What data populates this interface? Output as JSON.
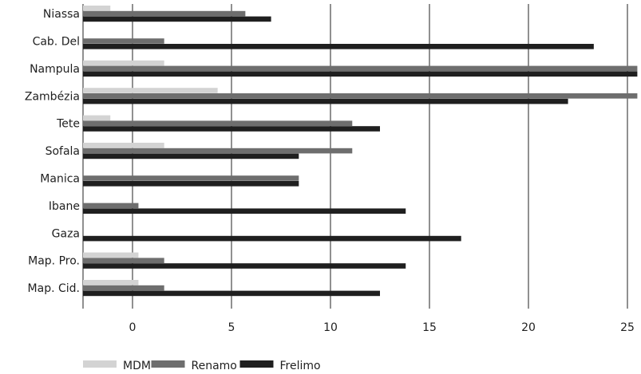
{
  "chart_data": {
    "type": "bar",
    "orientation": "horizontal",
    "title": "",
    "xlabel": "",
    "ylabel": "",
    "categories": [
      "Niassa",
      "Cab. Del",
      "Nampula",
      "Zambézia",
      "Tete",
      "Sofala",
      "Manica",
      "Ibane",
      "Gaza",
      "Map. Pro.",
      "Map. Cid."
    ],
    "x_ticks": [
      0,
      5,
      10,
      15,
      20,
      25
    ],
    "xlim": [
      -2.5,
      25.5
    ],
    "grid": "vertical",
    "legend_position": "bottom-left",
    "series": [
      {
        "name": "MDM",
        "color": "#d3d3d3",
        "values": [
          -1.2,
          0,
          1.6,
          4.3,
          -1.2,
          1.6,
          0,
          0,
          0,
          0.3,
          0.3
        ]
      },
      {
        "name": "Renamo",
        "color": "#6e6e6e",
        "values": [
          5.7,
          1.6,
          25.5,
          25.5,
          11.1,
          11.1,
          8.4,
          0.3,
          0,
          1.6,
          1.6
        ]
      },
      {
        "name": "Frelimo",
        "color": "#1f1f1f",
        "values": [
          7.0,
          23.3,
          25.5,
          22.0,
          12.5,
          8.4,
          8.4,
          13.8,
          16.6,
          13.8,
          12.5
        ]
      }
    ]
  }
}
